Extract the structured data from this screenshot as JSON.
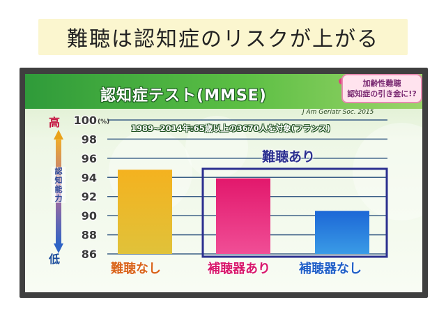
{
  "headline": "難聴は認知症のリスクが上がる",
  "panel": {
    "title": "認知症テスト(MMSE)",
    "source": "J Am Geriatr Soc. 2015",
    "subtitle": "1989~2014年:65歳以上の3670人を対象(フランス)",
    "callout_line1": "加齢性難聴",
    "callout_line2": "認知症の引き金に!?"
  },
  "axis": {
    "high_label": "高",
    "low_label": "低",
    "caption": "認知能力",
    "unit": "(%)"
  },
  "colors": {
    "bar1_top": "#f4b21f",
    "bar1_bottom": "#e0c23a",
    "bar2_top": "#e2186c",
    "bar2_bottom": "#f04e96",
    "bar3_top": "#1c67d6",
    "bar3_bottom": "#3a9be6",
    "group_box": "#2b2f8f"
  },
  "chart_data": {
    "type": "bar",
    "title": "認知症テスト(MMSE)",
    "subtitle": "1989~2014年:65歳以上の3670人を対象(フランス)",
    "ylabel": "認知能力",
    "ylim": [
      86,
      100
    ],
    "yticks": [
      86,
      88,
      90,
      92,
      94,
      96,
      98,
      100
    ],
    "ytick_labels": [
      "86",
      "88",
      "90",
      "92",
      "94",
      "96",
      "98",
      "100"
    ],
    "categories": [
      "難聴なし",
      "補聴器あり",
      "補聴器なし"
    ],
    "values": [
      94.8,
      93.9,
      90.5
    ],
    "category_colors": [
      "#e9a51c",
      "#e0247a",
      "#2a78d8"
    ],
    "group": {
      "label": "難聴あり",
      "members": [
        "補聴器あり",
        "補聴器なし"
      ]
    },
    "grid": true
  }
}
